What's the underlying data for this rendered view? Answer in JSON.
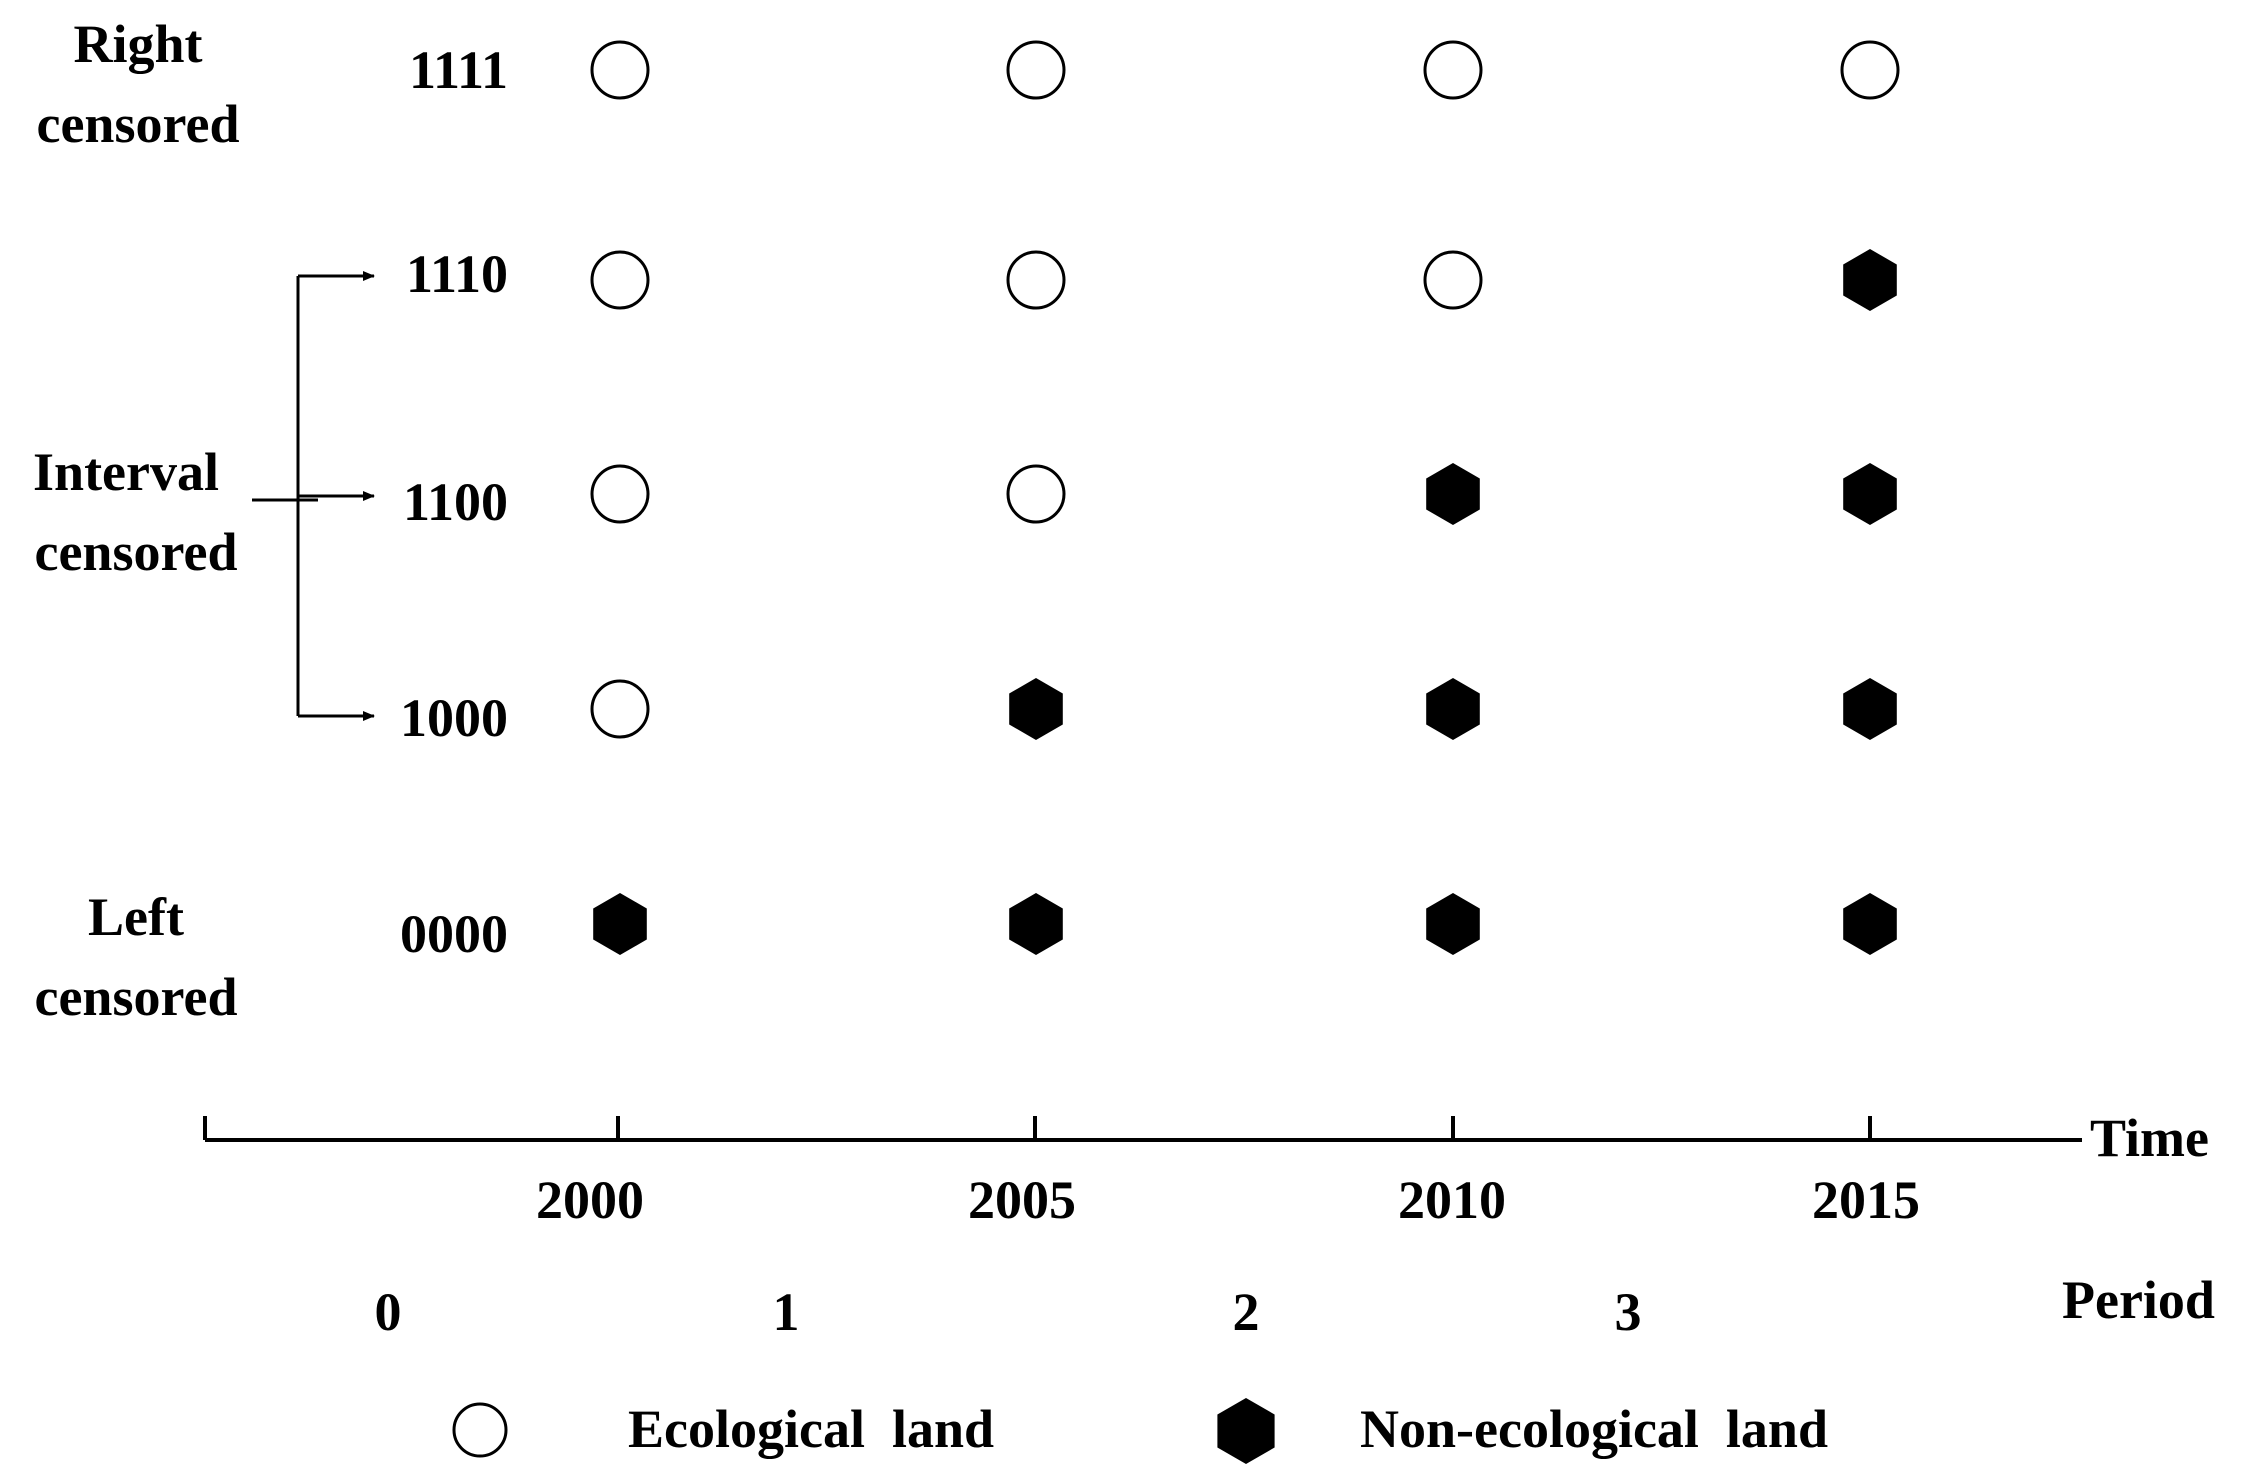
{
  "categories": [
    {
      "lines": [
        "Right",
        "censored"
      ]
    },
    {
      "lines": [
        "Interval",
        "censored"
      ]
    },
    {
      "lines": [
        "Left",
        "censored"
      ]
    }
  ],
  "rows": [
    {
      "code": "1111",
      "states": [
        "eco",
        "eco",
        "eco",
        "eco"
      ]
    },
    {
      "code": "1110",
      "states": [
        "eco",
        "eco",
        "eco",
        "non"
      ]
    },
    {
      "code": "1100",
      "states": [
        "eco",
        "eco",
        "non",
        "non"
      ]
    },
    {
      "code": "1000",
      "states": [
        "eco",
        "non",
        "non",
        "non"
      ]
    },
    {
      "code": "0000",
      "states": [
        "non",
        "non",
        "non",
        "non"
      ]
    }
  ],
  "time_axis": {
    "label": "Time",
    "years": [
      "2000",
      "2005",
      "2010",
      "2015"
    ]
  },
  "period_axis": {
    "label": "Period",
    "periods": [
      "0",
      "1",
      "2",
      "3"
    ]
  },
  "legend": {
    "ecological": "Ecological  land",
    "non_ecological": "Non-ecological  land"
  },
  "colors": {
    "ink": "#000000",
    "background": "#ffffff"
  }
}
